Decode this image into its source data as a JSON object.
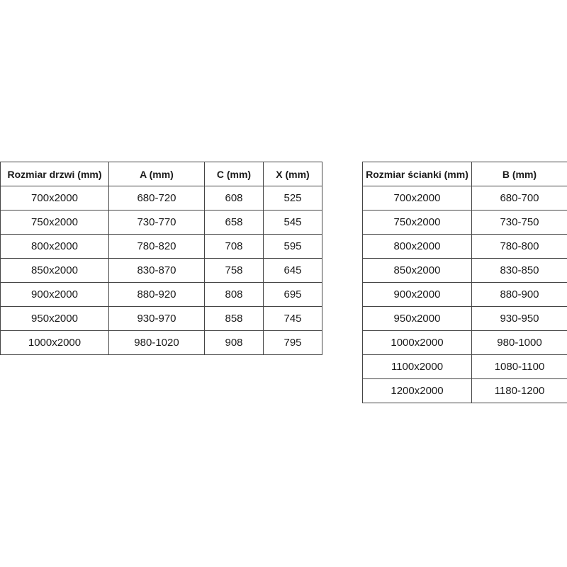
{
  "door_table": {
    "headers": [
      "Rozmiar drzwi (mm)",
      "A (mm)",
      "C (mm)",
      "X (mm)"
    ],
    "rows": [
      [
        "700x2000",
        "680-720",
        "608",
        "525"
      ],
      [
        "750x2000",
        "730-770",
        "658",
        "545"
      ],
      [
        "800x2000",
        "780-820",
        "708",
        "595"
      ],
      [
        "850x2000",
        "830-870",
        "758",
        "645"
      ],
      [
        "900x2000",
        "880-920",
        "808",
        "695"
      ],
      [
        "950x2000",
        "930-970",
        "858",
        "745"
      ],
      [
        "1000x2000",
        "980-1020",
        "908",
        "795"
      ]
    ]
  },
  "wall_table": {
    "headers": [
      "Rozmiar ścianki (mm)",
      "B (mm)"
    ],
    "rows": [
      [
        "700x2000",
        "680-700"
      ],
      [
        "750x2000",
        "730-750"
      ],
      [
        "800x2000",
        "780-800"
      ],
      [
        "850x2000",
        "830-850"
      ],
      [
        "900x2000",
        "880-900"
      ],
      [
        "950x2000",
        "930-950"
      ],
      [
        "1000x2000",
        "980-1000"
      ],
      [
        "1100x2000",
        "1080-1100"
      ],
      [
        "1200x2000",
        "1180-1200"
      ]
    ]
  }
}
